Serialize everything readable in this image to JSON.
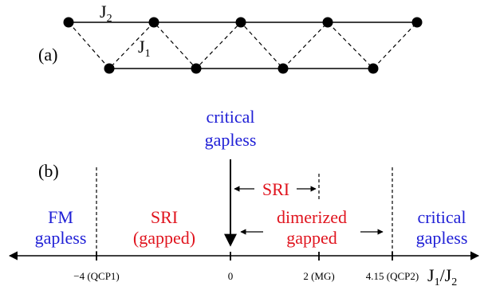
{
  "panel_a": {
    "label": "(a)",
    "coupling_j2": {
      "main": "J",
      "sub": "2"
    },
    "coupling_j1": {
      "main": "J",
      "sub": "1"
    }
  },
  "panel_b": {
    "label": "(b)",
    "critical_top": {
      "line1": "critical",
      "line2": "gapless"
    },
    "sri_short": "SRI",
    "fm": {
      "line1": "FM",
      "line2": "gapless"
    },
    "sri_gapped": {
      "line1": "SRI",
      "line2": "(gapped)"
    },
    "dimerized": {
      "line1": "dimerized",
      "line2": "gapped"
    },
    "critical_right": {
      "line1": "critical",
      "line2": "gapless"
    },
    "ticks": [
      {
        "label": "−4 (QCP1)",
        "value": -4
      },
      {
        "label": "0",
        "value": 0
      },
      {
        "label": "2 (MG)",
        "value": 2
      },
      {
        "label": "4.15 (QCP2)",
        "value": 4.15
      }
    ],
    "axis_label": {
      "j1": "J",
      "sub1": "1",
      "slash": "/J",
      "sub2": "2"
    }
  },
  "colors": {
    "blue": "#1f1fd6",
    "red": "#e0141e",
    "black": "#000000"
  }
}
